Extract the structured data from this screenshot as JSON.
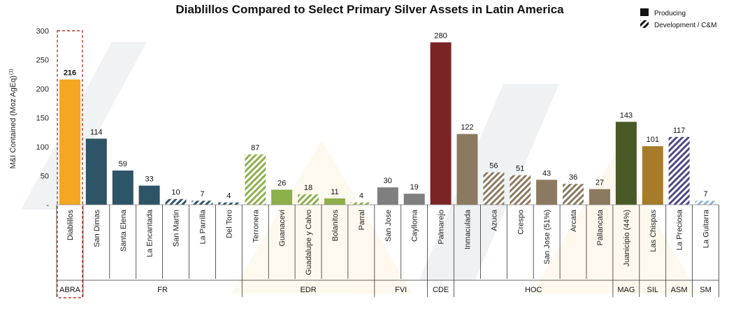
{
  "chart_data": {
    "type": "bar",
    "title": "Diablillos Compared to Select Primary Silver Assets in Latin America",
    "ylabel": "M&I Contained (Moz AgEq)",
    "ylabel_sup": "(1)",
    "ylim": [
      0,
      300
    ],
    "yticks": [
      "-",
      "50",
      "100",
      "150",
      "200",
      "250",
      "300"
    ],
    "legend": [
      {
        "label": "Producing",
        "style": "solid",
        "color": "#111111"
      },
      {
        "label": "Development / C&M",
        "style": "hatched",
        "color": "#111111"
      }
    ],
    "categories": [
      "Diablillos",
      "San Dimas",
      "Santa Elena",
      "La Encantada",
      "San Martin",
      "La Parrilla",
      "Del Toro",
      "Terronera",
      "Guanacevi",
      "Guadalupe y Calvo",
      "Bolanitos",
      "Parral",
      "San Jose",
      "Caylloma",
      "Palmarejo",
      "Inmaculada",
      "Azuca",
      "Crespo",
      "San Jose (51%)",
      "Arcata",
      "Pallancata",
      "Juanicipio (44%)",
      "Las Chispas",
      "La Preciosa",
      "La Guitarra"
    ],
    "values": [
      216,
      114,
      59,
      33,
      10,
      7,
      4,
      87,
      26,
      18,
      11,
      4,
      30,
      19,
      280,
      122,
      56,
      51,
      43,
      36,
      27,
      143,
      101,
      117,
      7
    ],
    "status": [
      "producing",
      "producing",
      "producing",
      "producing",
      "development",
      "development",
      "development",
      "development",
      "producing",
      "development",
      "producing",
      "development",
      "producing",
      "producing",
      "producing",
      "producing",
      "development",
      "development",
      "producing",
      "development",
      "producing",
      "producing",
      "producing",
      "development",
      "development"
    ],
    "colors": [
      "#F5A623",
      "#2E5467",
      "#2E5467",
      "#2E5467",
      "#2E5467",
      "#2E5467",
      "#2E5467",
      "#8DB04A",
      "#8DB04A",
      "#8DB04A",
      "#8DB04A",
      "#8DB04A",
      "#7F7F7F",
      "#7F7F7F",
      "#7B2426",
      "#8C7A60",
      "#8C7A60",
      "#8C7A60",
      "#8C7A60",
      "#8C7A60",
      "#8C7A60",
      "#4A5A26",
      "#A67C2A",
      "#4E4785",
      "#8FB4CF"
    ],
    "groups": [
      {
        "label": "ABRA",
        "start": 0,
        "count": 1,
        "highlight": true
      },
      {
        "label": "FR",
        "start": 1,
        "count": 6
      },
      {
        "label": "EDR",
        "start": 7,
        "count": 5
      },
      {
        "label": "FVI",
        "start": 12,
        "count": 2
      },
      {
        "label": "CDE",
        "start": 14,
        "count": 1
      },
      {
        "label": "HOC",
        "start": 15,
        "count": 6
      },
      {
        "label": "MAG",
        "start": 21,
        "count": 1
      },
      {
        "label": "SIL",
        "start": 22,
        "count": 1
      },
      {
        "label": "ASM",
        "start": 23,
        "count": 1
      },
      {
        "label": "SM",
        "start": 24,
        "count": 1
      }
    ],
    "value_labels": [
      "216",
      "114",
      "59",
      "33",
      "10",
      "7",
      "4",
      "87",
      "26",
      "18",
      "11",
      "4",
      "30",
      "19",
      "280",
      "122",
      "56",
      "51",
      "43",
      "36",
      "27",
      "143",
      "101",
      "117",
      "7"
    ]
  }
}
